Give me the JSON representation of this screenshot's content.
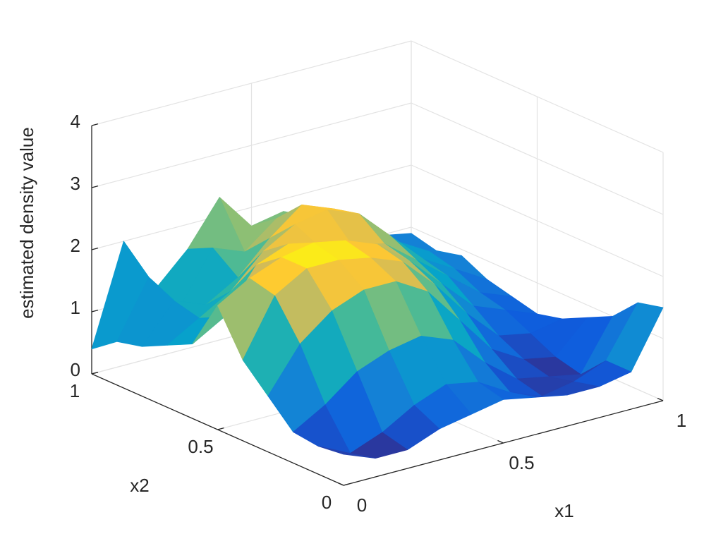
{
  "chart_data": {
    "type": "surface",
    "xlabel": "x1",
    "ylabel": "x2",
    "zlabel": "estimated density value",
    "x": [
      0,
      0.1,
      0.2,
      0.3,
      0.4,
      0.5,
      0.6,
      0.7,
      0.8,
      0.9,
      1
    ],
    "y": [
      0,
      0.1,
      0.2,
      0.3,
      0.4,
      0.5,
      0.6,
      0.7,
      0.8,
      0.9,
      1
    ],
    "z": [
      [
        0.5,
        0.3,
        0.3,
        0.5,
        0.6,
        0.7,
        0.6,
        0.5,
        0.5,
        0.6,
        1.5
      ],
      [
        0.45,
        0.2,
        0.4,
        0.7,
        0.9,
        0.8,
        0.5,
        0.3,
        0.4,
        0.6,
        1.4
      ],
      [
        0.5,
        0.8,
        1.2,
        1.4,
        1.5,
        1.3,
        0.8,
        0.4,
        0.3,
        0.2,
        1.0
      ],
      [
        0.9,
        1.6,
        2.0,
        2.2,
        2.2,
        1.9,
        1.3,
        0.7,
        0.4,
        0.3,
        0.8
      ],
      [
        1.3,
        2.2,
        2.5,
        2.5,
        2.4,
        2.2,
        1.7,
        1.1,
        0.6,
        0.5,
        0.6
      ],
      [
        2.0,
        2.3,
        2.5,
        2.6,
        2.5,
        2.3,
        1.9,
        1.4,
        0.9,
        0.7,
        0.5
      ],
      [
        1.2,
        1.5,
        2.2,
        2.4,
        2.2,
        2.1,
        2.0,
        1.6,
        1.2,
        0.8,
        0.6
      ],
      [
        1.0,
        1.3,
        1.6,
        2.1,
        2.4,
        2.5,
        2.3,
        1.8,
        1.3,
        1.0,
        0.7
      ],
      [
        0.8,
        1.4,
        1.2,
        1.5,
        2.0,
        2.4,
        2.2,
        1.8,
        1.4,
        1.1,
        0.9
      ],
      [
        0.7,
        1.6,
        1.0,
        1.8,
        1.6,
        2.0,
        1.9,
        1.6,
        1.3,
        1.0,
        0.8
      ],
      [
        0.4,
        2.0,
        1.1,
        1.6,
        2.3,
        1.7,
        1.8,
        1.5,
        1.2,
        1.0,
        0.9
      ]
    ],
    "xlim": [
      0,
      1
    ],
    "ylim": [
      0,
      1
    ],
    "zlim": [
      0,
      4
    ],
    "xticks": [
      0,
      0.5,
      1
    ],
    "yticks": [
      0,
      0.5,
      1
    ],
    "zticks": [
      0,
      1,
      2,
      3,
      4
    ],
    "grid": true
  }
}
